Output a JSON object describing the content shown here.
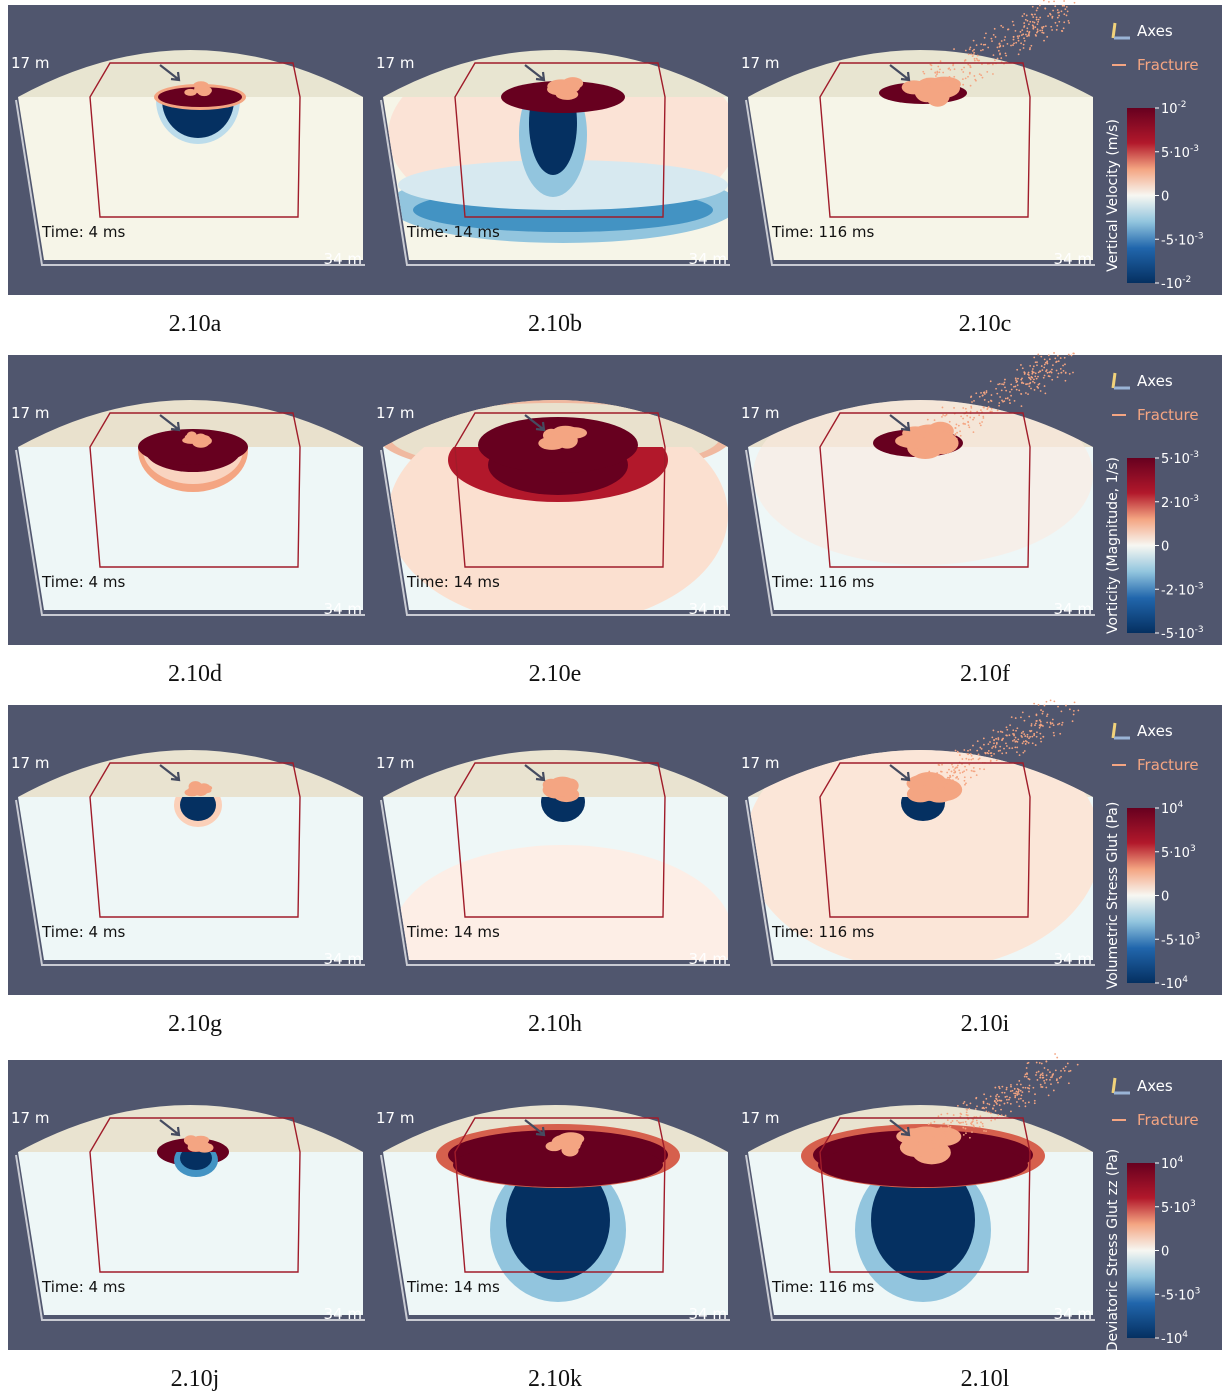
{
  "figure": {
    "labels": {
      "depth": "17 m",
      "width": "34 m",
      "axes": "Axes",
      "fracture": "Fracture"
    },
    "rows": [
      {
        "colorbar": {
          "title": "Vertical Velocity (m/s)",
          "ticks": [
            {
              "base": "10",
              "exp": "-2"
            },
            {
              "base": "5·10",
              "exp": "-3"
            },
            {
              "base": "0"
            },
            {
              "base": "-5·10",
              "exp": "-3"
            },
            {
              "base": "-10",
              "exp": "-2"
            }
          ]
        },
        "panels": [
          {
            "time": "Time: 4 ms",
            "caption": "2.10a"
          },
          {
            "time": "Time: 14 ms",
            "caption": "2.10b"
          },
          {
            "time": "Time: 116 ms",
            "caption": "2.10c"
          }
        ]
      },
      {
        "colorbar": {
          "title": "Vorticity (Magnitude, 1/s)",
          "ticks": [
            {
              "base": "5·10",
              "exp": "-3"
            },
            {
              "base": "2·10",
              "exp": "-3"
            },
            {
              "base": "0"
            },
            {
              "base": "-2·10",
              "exp": "-3"
            },
            {
              "base": "-5·10",
              "exp": "-3"
            }
          ]
        },
        "panels": [
          {
            "time": "Time: 4 ms",
            "caption": "2.10d"
          },
          {
            "time": "Time: 14 ms",
            "caption": "2.10e"
          },
          {
            "time": "Time: 116 ms",
            "caption": "2.10f"
          }
        ]
      },
      {
        "colorbar": {
          "title": "Volumetric Stress Glut (Pa)",
          "ticks": [
            {
              "base": "10",
              "exp": "4"
            },
            {
              "base": "5·10",
              "exp": "3"
            },
            {
              "base": "0"
            },
            {
              "base": "-5·10",
              "exp": "3"
            },
            {
              "base": "-10",
              "exp": "4"
            }
          ]
        },
        "panels": [
          {
            "time": "Time: 4 ms",
            "caption": "2.10g"
          },
          {
            "time": "Time: 14 ms",
            "caption": "2.10h"
          },
          {
            "time": "Time: 116 ms",
            "caption": "2.10i"
          }
        ]
      },
      {
        "colorbar": {
          "title": "Deviatoric Stress Glut zz (Pa)",
          "ticks": [
            {
              "base": "10",
              "exp": "4"
            },
            {
              "base": "5·10",
              "exp": "3"
            },
            {
              "base": "0"
            },
            {
              "base": "-5·10",
              "exp": "3"
            },
            {
              "base": "-10",
              "exp": "4"
            }
          ]
        },
        "panels": [
          {
            "time": "Time: 4 ms",
            "caption": "2.10j"
          },
          {
            "time": "Time: 14 ms",
            "caption": "2.10k"
          },
          {
            "time": "Time: 116 ms",
            "caption": "2.10l"
          }
        ]
      }
    ]
  }
}
